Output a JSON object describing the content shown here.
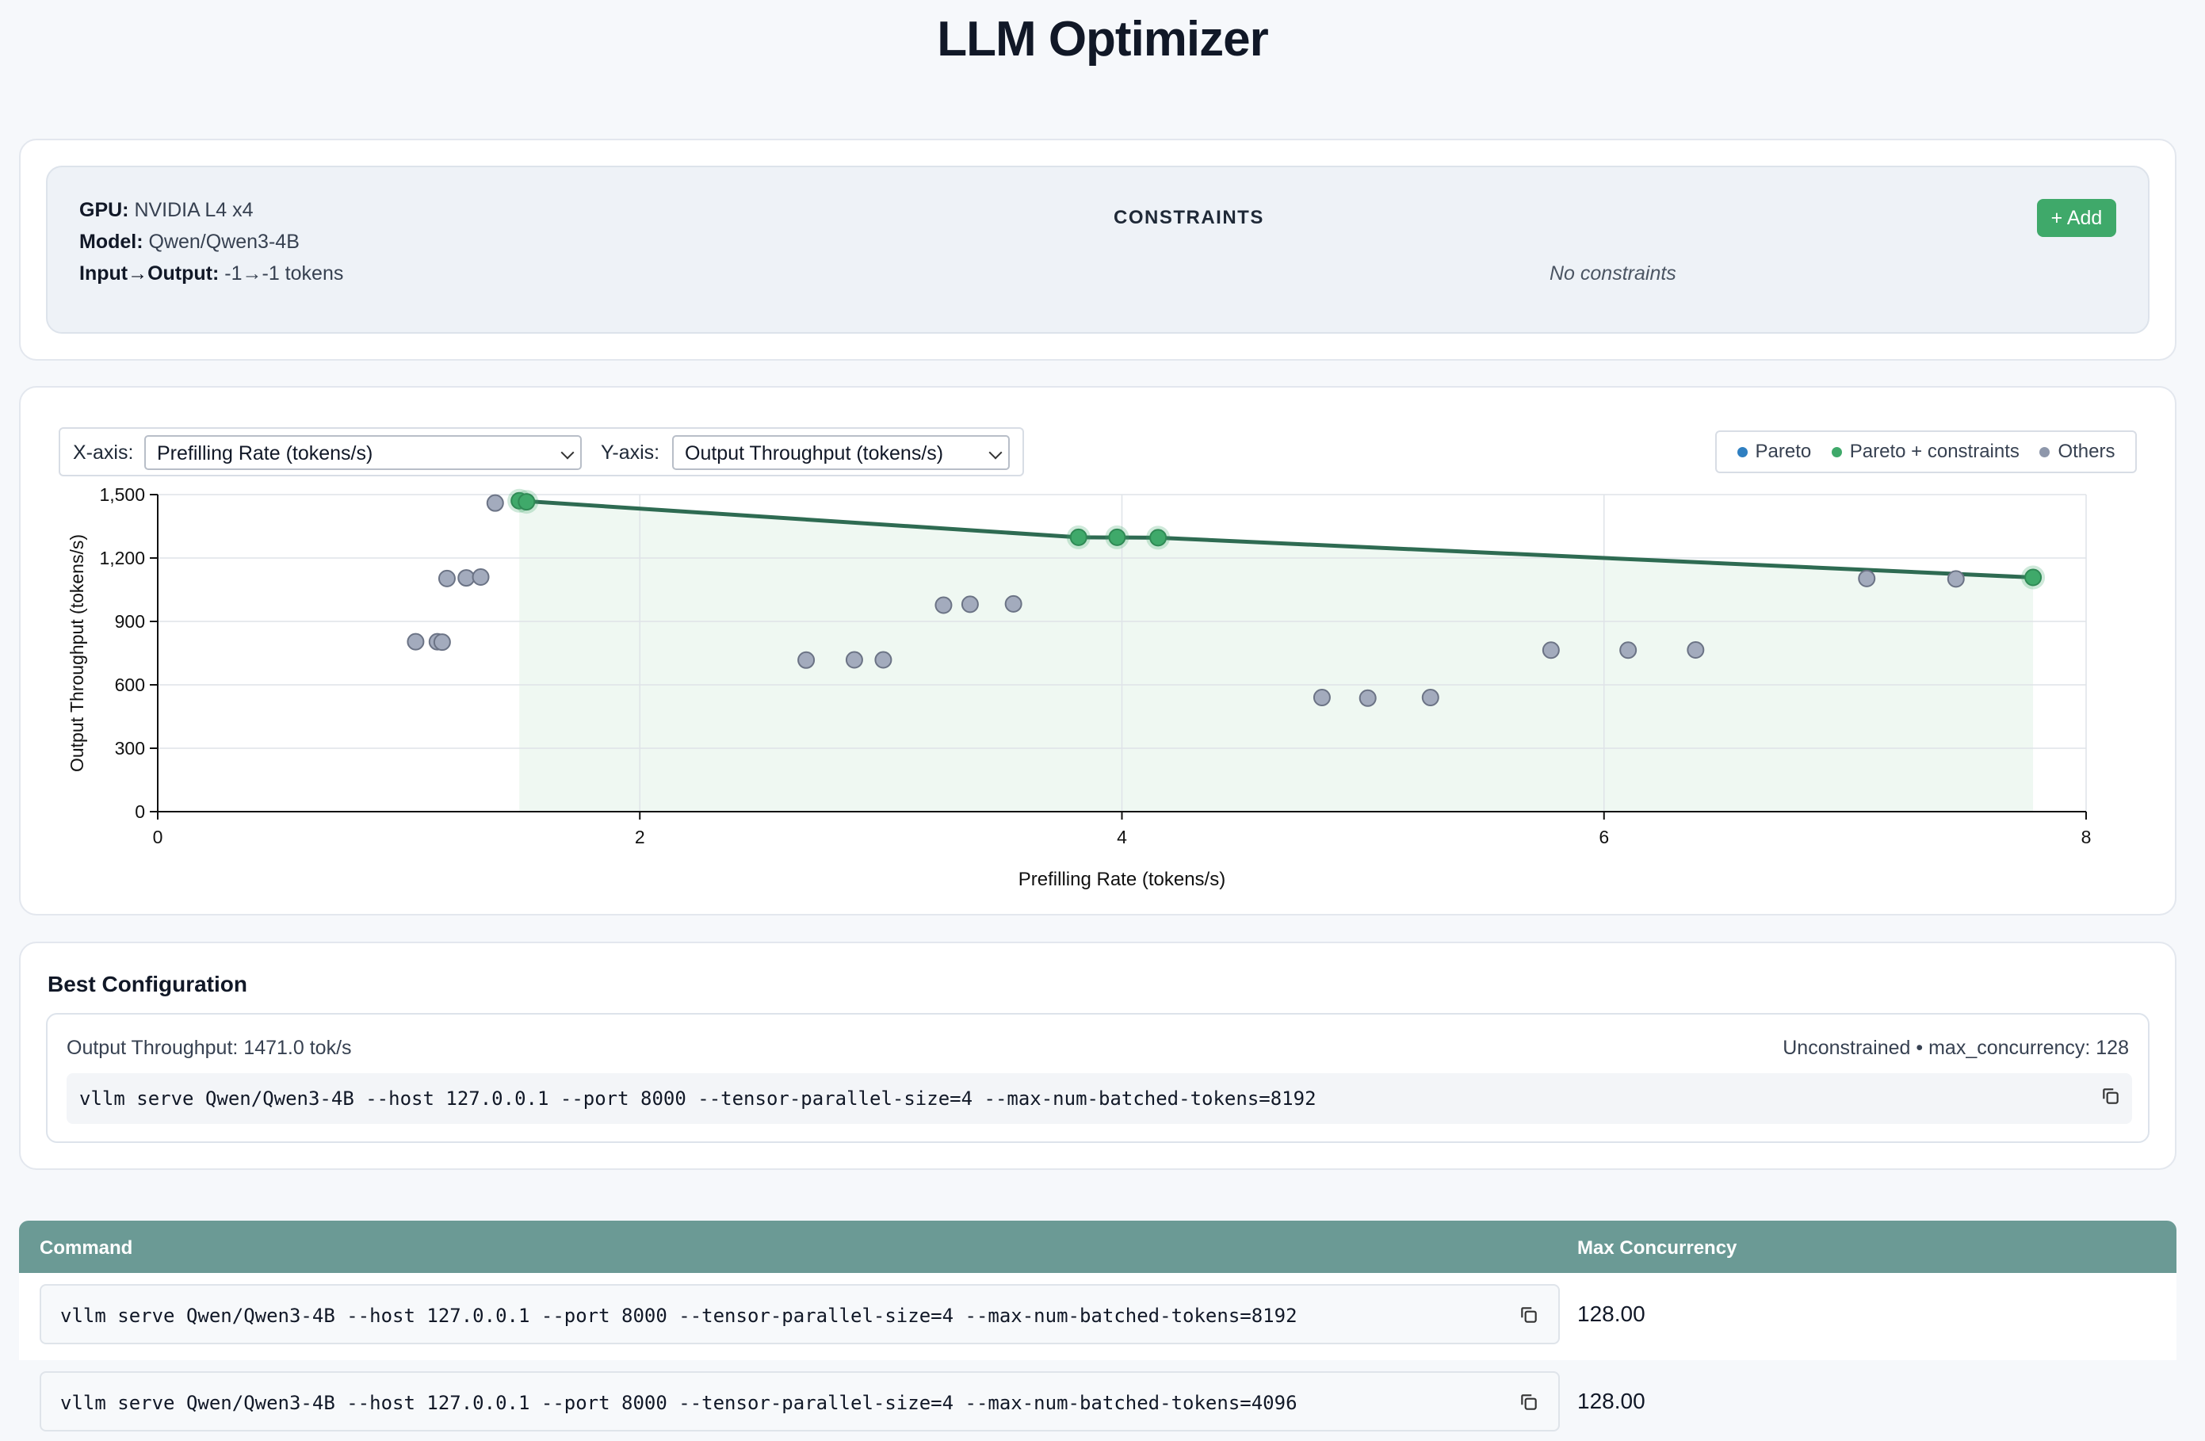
{
  "app": {
    "title": "LLM Optimizer"
  },
  "info": {
    "gpu_label": "GPU:",
    "gpu_value": "NVIDIA L4 x4",
    "model_label": "Model:",
    "model_value": "Qwen/Qwen3-4B",
    "io_label": "Input→Output:",
    "io_value": "-1→-1 tokens",
    "constraints_title": "CONSTRAINTS",
    "add_button": "+ Add",
    "no_constraints": "No constraints"
  },
  "controls": {
    "x_label": "X-axis:",
    "x_selected": "Prefilling Rate (tokens/s)",
    "y_label": "Y-axis:",
    "y_selected": "Output Throughput (tokens/s)"
  },
  "legend": [
    {
      "label": "Pareto",
      "color": "#2f7fc1"
    },
    {
      "label": "Pareto + constraints",
      "color": "#3fa96a"
    },
    {
      "label": "Others",
      "color": "#8e97ab"
    }
  ],
  "chart_data": {
    "type": "scatter",
    "xlabel": "Prefilling Rate (tokens/s)",
    "ylabel": "Output Throughput (tokens/s)",
    "xlim": [
      0,
      8
    ],
    "ylim": [
      0,
      1500
    ],
    "x_ticks": [
      "0",
      "2",
      "4",
      "6",
      "8"
    ],
    "y_ticks": [
      "0",
      "300",
      "600",
      "900",
      "1,200",
      "1,500"
    ],
    "grid": true,
    "legend_position": "top-right",
    "series": [
      {
        "name": "Pareto + constraints",
        "points": [
          [
            1.5,
            1471
          ],
          [
            1.53,
            1466
          ],
          [
            3.82,
            1298
          ],
          [
            3.98,
            1298
          ],
          [
            4.15,
            1296
          ],
          [
            7.78,
            1108
          ]
        ]
      },
      {
        "name": "Others",
        "points": [
          [
            1.4,
            1460
          ],
          [
            1.2,
            1103
          ],
          [
            1.28,
            1106
          ],
          [
            1.34,
            1110
          ],
          [
            1.07,
            804
          ],
          [
            1.16,
            804
          ],
          [
            1.18,
            802
          ],
          [
            2.69,
            717
          ],
          [
            2.89,
            718
          ],
          [
            3.01,
            718
          ],
          [
            3.26,
            977
          ],
          [
            3.37,
            981
          ],
          [
            3.55,
            983
          ],
          [
            4.83,
            540
          ],
          [
            5.02,
            537
          ],
          [
            5.28,
            540
          ],
          [
            5.78,
            764
          ],
          [
            6.1,
            764
          ],
          [
            6.38,
            765
          ],
          [
            7.09,
            1103
          ],
          [
            7.46,
            1101
          ]
        ]
      }
    ],
    "pareto_front": [
      [
        1.5,
        1471
      ],
      [
        3.82,
        1298
      ],
      [
        4.15,
        1296
      ],
      [
        7.78,
        1108
      ]
    ]
  },
  "best": {
    "title": "Best Configuration",
    "metric": "Output Throughput: 1471.0 tok/s",
    "meta": "Unconstrained • max_concurrency: 128",
    "command": "vllm serve Qwen/Qwen3-4B --host 127.0.0.1 --port 8000 --tensor-parallel-size=4 --max-num-batched-tokens=8192"
  },
  "table": {
    "headers": {
      "command": "Command",
      "max_concurrency": "Max Concurrency"
    },
    "rows": [
      {
        "command": "vllm serve Qwen/Qwen3-4B --host 127.0.0.1 --port 8000 --tensor-parallel-size=4 --max-num-batched-tokens=8192",
        "max_concurrency": "128.00"
      },
      {
        "command": "vllm serve Qwen/Qwen3-4B --host 127.0.0.1 --port 8000 --tensor-parallel-size=4 --max-num-batched-tokens=4096",
        "max_concurrency": "128.00"
      }
    ]
  }
}
